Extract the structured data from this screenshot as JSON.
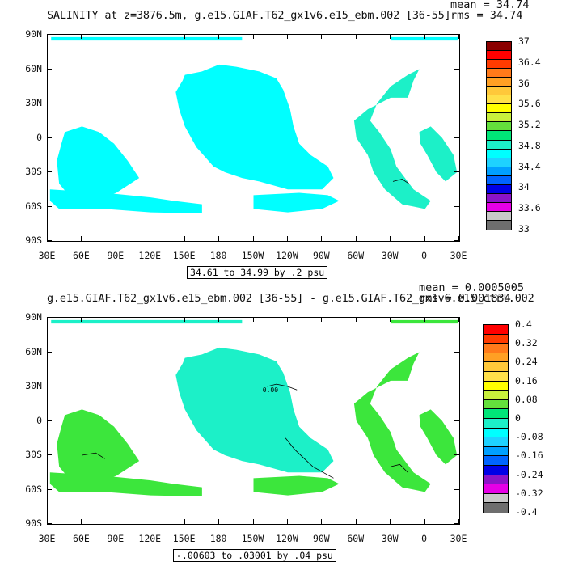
{
  "chart_data": [
    {
      "type": "heatmap",
      "title": "SALINITY at z=3876.5m, g.e15.GIAF.T62_gx1v6.e15_ebm.002 [36-55]",
      "stats": {
        "mean": "mean = 34.74",
        "rms": "rms = 34.74"
      },
      "x_tick_labels": [
        "30E",
        "60E",
        "90E",
        "120E",
        "150E",
        "180",
        "150W",
        "120W",
        "90W",
        "60W",
        "30W",
        "0",
        "30E"
      ],
      "y_tick_labels": [
        "90N",
        "60N",
        "30N",
        "0",
        "30S",
        "60S",
        "90S"
      ],
      "xlim": [
        30,
        390
      ],
      "ylim": [
        -90,
        90
      ],
      "contour_info": "34.61 to 34.99 by .2 psu",
      "colorbar_labels": [
        "37",
        "36.4",
        "36",
        "35.6",
        "35.2",
        "34.8",
        "34.4",
        "34",
        "33.6",
        "33"
      ],
      "colorbar_colors": [
        "#8B0000",
        "#ff0000",
        "#ff3b00",
        "#ff7a1a",
        "#ffa024",
        "#ffc83a",
        "#ffe04a",
        "#ffff00",
        "#c8f03c",
        "#64e03c",
        "#00e678",
        "#1cf0c8",
        "#00ffff",
        "#1ed2ff",
        "#00a0ff",
        "#0064ff",
        "#0000e6",
        "#8c14c8",
        "#e600e6",
        "#c8c8c8",
        "#6e6e6e"
      ],
      "field_colors": {
        "primary": "#00ffff",
        "secondary": "#1cf0c8"
      }
    },
    {
      "type": "heatmap",
      "title": "g.e15.GIAF.T62_gx1v6.e15_ebm.002 [36-55] - g.e15.GIAF.T62_gx1v6.e15_ctrl.002",
      "stats": {
        "mean": "mean = 0.0005005",
        "rms": "rms = 0.001834"
      },
      "x_tick_labels": [
        "30E",
        "60E",
        "90E",
        "120E",
        "150E",
        "180",
        "150W",
        "120W",
        "90W",
        "60W",
        "30W",
        "0",
        "30E"
      ],
      "y_tick_labels": [
        "90N",
        "60N",
        "30N",
        "0",
        "30S",
        "60S",
        "90S"
      ],
      "xlim": [
        30,
        390
      ],
      "ylim": [
        -90,
        90
      ],
      "contour_info": "-.00603 to .03001 by .04 psu",
      "contour_label": "0.00",
      "colorbar_labels": [
        "0.4",
        "0.32",
        "0.24",
        "0.16",
        "0.08",
        "0",
        "-0.08",
        "-0.16",
        "-0.24",
        "-0.32",
        "-0.4"
      ],
      "colorbar_colors": [
        "#ff0000",
        "#ff3b00",
        "#ff7a1a",
        "#ffa024",
        "#ffc83a",
        "#ffe04a",
        "#ffff00",
        "#c8f03c",
        "#64e03c",
        "#00e678",
        "#1cf0c8",
        "#00ffff",
        "#1ed2ff",
        "#00a0ff",
        "#0064ff",
        "#0000e6",
        "#8c14c8",
        "#e600e6",
        "#c8c8c8",
        "#6e6e6e"
      ],
      "field_colors": {
        "primary": "#1cf0c8",
        "secondary": "#3ce63c"
      }
    }
  ]
}
